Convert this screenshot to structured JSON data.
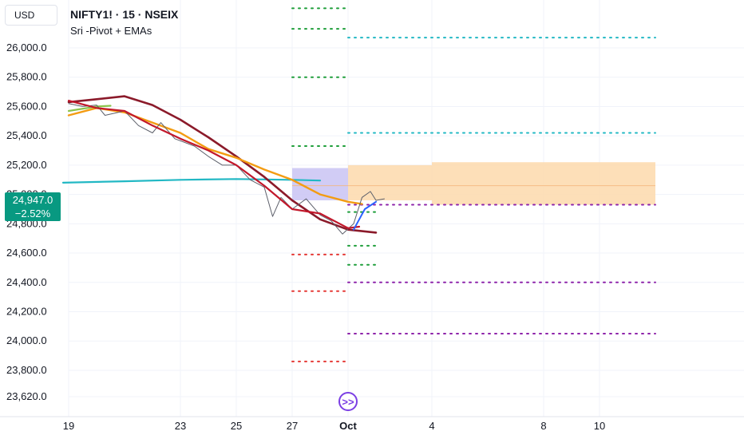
{
  "header": {
    "currency_button": "USD",
    "symbol_line": "NIFTY1! · 15 · NSEIX",
    "indicator_name": "Sri -Pivot + EMAs"
  },
  "last_price": {
    "value": "24,947.0",
    "change": "−2.52%",
    "color": "#089981"
  },
  "nav_icon": "scroll-to-realtime-icon",
  "colors": {
    "ema_red": "#c2182b",
    "ema_darkred": "#8b1a2a",
    "ema_orange": "#f39c12",
    "ema_green": "#8bc34a",
    "teal_line": "#22b8c4",
    "pivot_green": "#1e9e3a",
    "pivot_teal": "#22b8c4",
    "pivot_red": "#e53935",
    "pivot_purple": "#8e24aa",
    "box_purple": "#c9c3f3",
    "box_orange": "#fdd9ac"
  },
  "chart_data": {
    "type": "line",
    "title": "NIFTY1! · 15 · NSEIX",
    "ylim": [
      23560,
      26160
    ],
    "y_ticks": [
      26000.0,
      25800.0,
      25600.0,
      25400.0,
      25200.0,
      25000.0,
      24800.0,
      24600.0,
      24400.0,
      24200.0,
      24000.0,
      23800.0,
      23620.0
    ],
    "y_tick_labels": [
      "26,000.0",
      "25,800.0",
      "25,600.0",
      "25,400.0",
      "25,200.0",
      "25,000.0",
      "24,800.0",
      "24,600.0",
      "24,400.0",
      "24,200.0",
      "24,000.0",
      "23,800.0",
      "23,620.0"
    ],
    "x_ticks": [
      {
        "t": 0,
        "label": "19"
      },
      {
        "t": 4,
        "label": "23"
      },
      {
        "t": 6,
        "label": "25"
      },
      {
        "t": 8,
        "label": "27"
      },
      {
        "t": 10,
        "label": "Oct"
      },
      {
        "t": 13,
        "label": "4"
      },
      {
        "t": 17,
        "label": "8"
      },
      {
        "t": 19,
        "label": "10"
      }
    ],
    "x_range": [
      -0.2,
      21.0
    ],
    "series": [
      {
        "key": "ema_orange",
        "points": [
          [
            0,
            25540
          ],
          [
            1,
            25590
          ],
          [
            2,
            25560
          ],
          [
            3,
            25490
          ],
          [
            4,
            25420
          ],
          [
            5,
            25310
          ],
          [
            6,
            25250
          ],
          [
            7,
            25170
          ],
          [
            8,
            25100
          ],
          [
            9,
            25000
          ],
          [
            10,
            24950
          ],
          [
            10.5,
            24935
          ]
        ]
      },
      {
        "key": "ema_green",
        "points": [
          [
            0,
            25570
          ],
          [
            1,
            25600
          ],
          [
            1.5,
            25605
          ]
        ]
      },
      {
        "key": "ema_darkred",
        "points": [
          [
            0,
            25630
          ],
          [
            1,
            25650
          ],
          [
            2,
            25670
          ],
          [
            3,
            25610
          ],
          [
            4,
            25510
          ],
          [
            5,
            25390
          ],
          [
            6,
            25260
          ],
          [
            7,
            25120
          ],
          [
            8,
            24960
          ],
          [
            9,
            24830
          ],
          [
            10,
            24760
          ],
          [
            11,
            24740
          ]
        ]
      },
      {
        "key": "ema_red",
        "points": [
          [
            0,
            25640
          ],
          [
            1,
            25590
          ],
          [
            2,
            25570
          ],
          [
            3,
            25470
          ],
          [
            4,
            25380
          ],
          [
            5,
            25300
          ],
          [
            6,
            25200
          ],
          [
            7,
            25060
          ],
          [
            8,
            24900
          ],
          [
            9,
            24870
          ],
          [
            10,
            24770
          ],
          [
            10.4,
            24780
          ]
        ]
      },
      {
        "key": "teal_line",
        "points": [
          [
            -0.2,
            25080
          ],
          [
            2,
            25090
          ],
          [
            4,
            25100
          ],
          [
            6,
            25105
          ],
          [
            8,
            25100
          ],
          [
            9,
            25095
          ]
        ]
      },
      {
        "key": "price",
        "points": [
          [
            0,
            25620
          ],
          [
            0.5,
            25600
          ],
          [
            1,
            25610
          ],
          [
            1.3,
            25540
          ],
          [
            2,
            25570
          ],
          [
            2.5,
            25470
          ],
          [
            3,
            25420
          ],
          [
            3.3,
            25490
          ],
          [
            3.8,
            25380
          ],
          [
            4.5,
            25330
          ],
          [
            5,
            25260
          ],
          [
            5.5,
            25200
          ],
          [
            6,
            25200
          ],
          [
            6.5,
            25100
          ],
          [
            7,
            25050
          ],
          [
            7.3,
            24850
          ],
          [
            7.6,
            24980
          ],
          [
            8,
            24900
          ],
          [
            8.5,
            24970
          ],
          [
            9,
            24860
          ],
          [
            9.4,
            24820
          ],
          [
            9.8,
            24730
          ],
          [
            10.2,
            24800
          ],
          [
            10.5,
            24980
          ],
          [
            10.8,
            25020
          ],
          [
            11,
            24960
          ],
          [
            11.3,
            24970
          ]
        ]
      },
      {
        "key": "blue_short",
        "points": [
          [
            10.2,
            24760
          ],
          [
            10.6,
            24900
          ],
          [
            11,
            24950
          ]
        ]
      }
    ],
    "pivot_levels": [
      {
        "y": 26270,
        "x": [
          8.0,
          10.0
        ],
        "color": "pivot_green"
      },
      {
        "y": 26130,
        "x": [
          8.0,
          10.0
        ],
        "color": "pivot_green"
      },
      {
        "y": 26070,
        "x": [
          10.0,
          21.0
        ],
        "color": "pivot_teal"
      },
      {
        "y": 25800,
        "x": [
          8.0,
          10.0
        ],
        "color": "pivot_green"
      },
      {
        "y": 25420,
        "x": [
          10.0,
          21.0
        ],
        "color": "pivot_teal"
      },
      {
        "y": 25330,
        "x": [
          8.0,
          10.0
        ],
        "color": "pivot_green"
      },
      {
        "y": 24930,
        "x": [
          10.0,
          21.0
        ],
        "color": "pivot_purple"
      },
      {
        "y": 24880,
        "x": [
          10.0,
          11.0
        ],
        "color": "pivot_green"
      },
      {
        "y": 24650,
        "x": [
          10.0,
          11.0
        ],
        "color": "pivot_green"
      },
      {
        "y": 24590,
        "x": [
          8.0,
          10.0
        ],
        "color": "pivot_red"
      },
      {
        "y": 24520,
        "x": [
          10.0,
          11.0
        ],
        "color": "pivot_green"
      },
      {
        "y": 24400,
        "x": [
          10.0,
          21.0
        ],
        "color": "pivot_purple"
      },
      {
        "y": 24340,
        "x": [
          8.0,
          10.0
        ],
        "color": "pivot_red"
      },
      {
        "y": 24050,
        "x": [
          10.0,
          21.0
        ],
        "color": "pivot_purple"
      },
      {
        "y": 23860,
        "x": [
          8.0,
          10.0
        ],
        "color": "pivot_red"
      }
    ],
    "boxes": [
      {
        "x": [
          8.0,
          10.0
        ],
        "y": [
          24960,
          25180
        ],
        "color": "box_purple",
        "mid": 25060
      },
      {
        "x": [
          10.0,
          13.0
        ],
        "y": [
          24960,
          25200
        ],
        "color": "box_orange",
        "mid": 25060
      },
      {
        "x": [
          13.0,
          21.0
        ],
        "y": [
          24930,
          25220
        ],
        "color": "box_orange",
        "mid": 25060
      }
    ]
  }
}
